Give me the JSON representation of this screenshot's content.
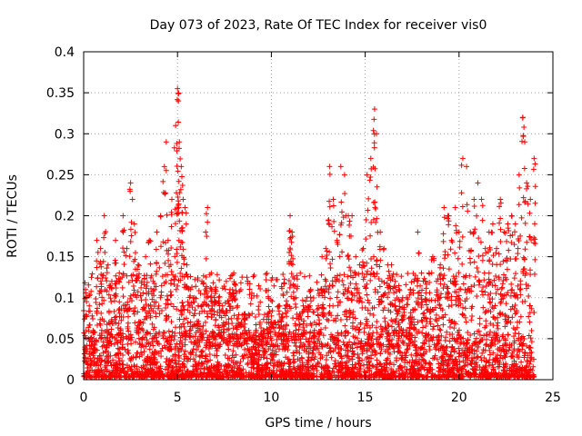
{
  "chart_data": {
    "type": "scatter",
    "title": "Day 073 of 2023, Rate Of TEC Index for receiver vis0",
    "xlabel": "GPS time / hours",
    "ylabel": "ROTI / TECUs",
    "xlim": [
      0,
      25
    ],
    "ylim": [
      0,
      0.4
    ],
    "x_ticks": [
      "0",
      "5",
      "10",
      "15",
      "20",
      "25"
    ],
    "y_ticks": [
      "0",
      "0.05",
      "0.1",
      "0.15",
      "0.2",
      "0.25",
      "0.3",
      "0.35",
      "0.4"
    ],
    "grid": true,
    "legend": "none",
    "marker": "plus",
    "color": "#ff0000",
    "series": [
      {
        "x": [
          0.1,
          0.3,
          0.5,
          0.7,
          0.9,
          1.1,
          1.3,
          1.5,
          1.7,
          1.9,
          2.1,
          2.3,
          2.5,
          2.6,
          2.7,
          2.9,
          3.1,
          3.3,
          3.5,
          3.7,
          3.9,
          4.1,
          4.3,
          4.4,
          4.5,
          4.7,
          4.9,
          5.0,
          5.05,
          5.1,
          5.2,
          5.3,
          5.4,
          5.5,
          5.7,
          5.9,
          6.1,
          6.3,
          6.5,
          6.6,
          6.8,
          7.0,
          7.2,
          7.4,
          7.6,
          7.8,
          8.0,
          8.2,
          8.4,
          8.6,
          8.8,
          9.0,
          9.2,
          9.4,
          9.6,
          9.8,
          10.0,
          10.2,
          10.4,
          10.6,
          10.8,
          11.0,
          11.1,
          11.3,
          11.5,
          11.7,
          11.9,
          12.1,
          12.3,
          12.5,
          12.7,
          12.9,
          13.1,
          13.3,
          13.5,
          13.7,
          13.9,
          14.1,
          14.3,
          14.5,
          14.7,
          14.9,
          15.1,
          15.3,
          15.5,
          15.6,
          15.8,
          16.0,
          16.2,
          16.4,
          16.6,
          16.8,
          17.0,
          17.2,
          17.4,
          17.6,
          17.8,
          18.0,
          18.2,
          18.4,
          18.6,
          18.8,
          19.0,
          19.2,
          19.4,
          19.6,
          19.8,
          20.0,
          20.2,
          20.4,
          20.6,
          20.8,
          21.0,
          21.2,
          21.4,
          21.6,
          21.8,
          22.0,
          22.2,
          22.4,
          22.6,
          22.8,
          23.0,
          23.2,
          23.4,
          23.5,
          23.6,
          23.8,
          24.0
        ],
        "y": [
          0.11,
          0.09,
          0.06,
          0.17,
          0.16,
          0.2,
          0.14,
          0.12,
          0.17,
          0.13,
          0.2,
          0.16,
          0.24,
          0.22,
          0.19,
          0.14,
          0.12,
          0.15,
          0.17,
          0.12,
          0.18,
          0.2,
          0.26,
          0.29,
          0.17,
          0.22,
          0.31,
          0.355,
          0.34,
          0.29,
          0.26,
          0.22,
          0.21,
          0.14,
          0.11,
          0.1,
          0.09,
          0.12,
          0.18,
          0.21,
          0.13,
          0.11,
          0.1,
          0.09,
          0.12,
          0.11,
          0.13,
          0.09,
          0.07,
          0.08,
          0.06,
          0.05,
          0.06,
          0.07,
          0.06,
          0.08,
          0.07,
          0.07,
          0.09,
          0.08,
          0.09,
          0.2,
          0.18,
          0.1,
          0.08,
          0.09,
          0.1,
          0.11,
          0.07,
          0.09,
          0.15,
          0.16,
          0.26,
          0.22,
          0.17,
          0.26,
          0.25,
          0.2,
          0.2,
          0.15,
          0.14,
          0.16,
          0.25,
          0.27,
          0.33,
          0.3,
          0.18,
          0.16,
          0.14,
          0.14,
          0.12,
          0.11,
          0.1,
          0.1,
          0.11,
          0.12,
          0.18,
          0.13,
          0.12,
          0.13,
          0.15,
          0.12,
          0.14,
          0.21,
          0.2,
          0.17,
          0.21,
          0.18,
          0.27,
          0.26,
          0.18,
          0.22,
          0.24,
          0.22,
          0.16,
          0.18,
          0.19,
          0.16,
          0.22,
          0.18,
          0.19,
          0.2,
          0.19,
          0.25,
          0.32,
          0.29,
          0.24,
          0.22,
          0.27
        ]
      }
    ],
    "dense_band": {
      "description_range_y": [
        0,
        0.06
      ],
      "note": ""
    }
  }
}
